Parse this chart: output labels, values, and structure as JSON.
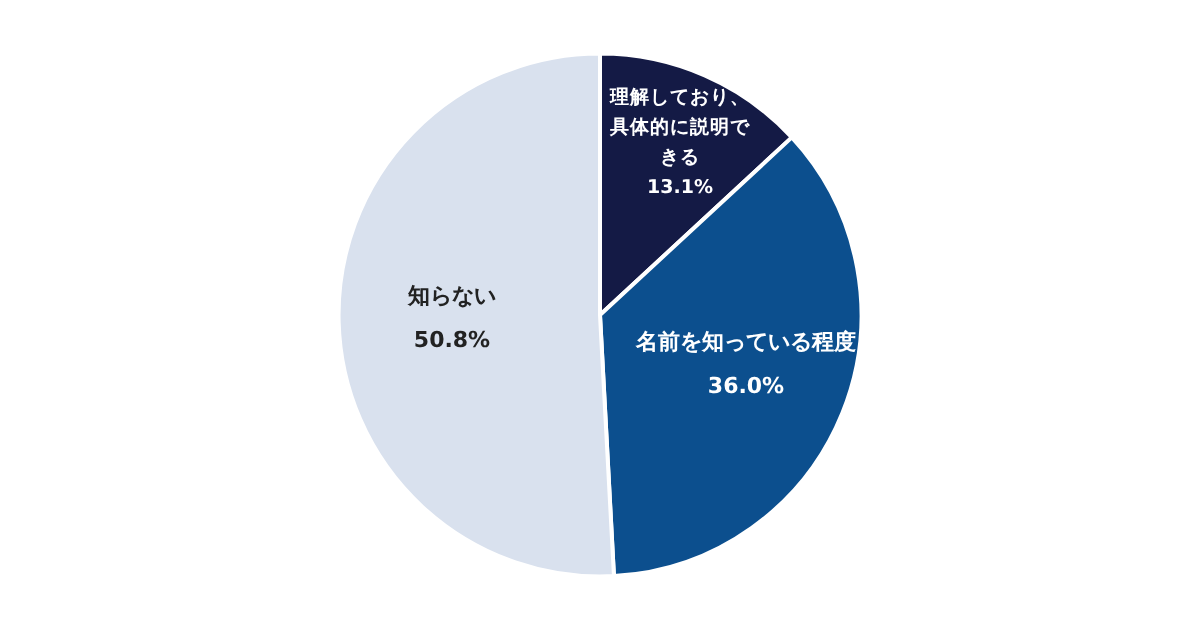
{
  "chart_data": {
    "type": "pie",
    "categories": [
      "理解しており、具体的に説明できる",
      "名前を知っている程度",
      "知らない"
    ],
    "values": [
      13.1,
      36.0,
      50.8
    ],
    "value_labels": [
      "13.1%",
      "36.0%",
      "50.8%"
    ],
    "colors": [
      "#141a45",
      "#0c4f8e",
      "#d9e1ee"
    ],
    "legend": false
  }
}
